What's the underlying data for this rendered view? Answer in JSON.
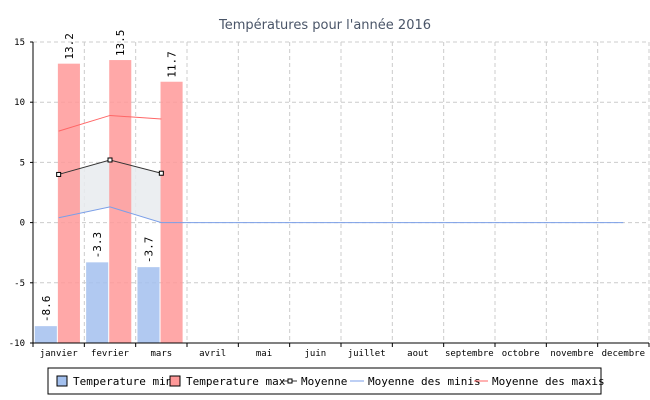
{
  "chart_data": {
    "type": "bar",
    "title": "Températures pour l'année 2016",
    "categories": [
      "janvier",
      "fevrier",
      "mars",
      "avril",
      "mai",
      "juin",
      "juillet",
      "aout",
      "septembre",
      "octobre",
      "novembre",
      "decembre"
    ],
    "ylim": [
      -10,
      15
    ],
    "yticks": [
      -10,
      -5,
      0,
      5,
      10,
      15
    ],
    "grid": true,
    "legend_position": "bottom",
    "series": [
      {
        "name": "Temperature min",
        "kind": "bar",
        "color": "#a3c0ee",
        "values": [
          -8.6,
          -3.3,
          -3.7,
          null,
          null,
          null,
          null,
          null,
          null,
          null,
          null,
          null
        ],
        "labels": [
          "-8.6",
          "-3.3",
          "-3.7"
        ]
      },
      {
        "name": "Temperature max",
        "kind": "bar",
        "color": "#ff9999",
        "values": [
          13.2,
          13.5,
          11.7,
          null,
          null,
          null,
          null,
          null,
          null,
          null,
          null,
          null
        ],
        "labels": [
          "13.2",
          "13.5",
          "11.7"
        ]
      },
      {
        "name": "Moyenne",
        "kind": "line-marker",
        "color": "#333333",
        "values": [
          4.0,
          5.2,
          4.1,
          null,
          null,
          null,
          null,
          null,
          null,
          null,
          null,
          null
        ]
      },
      {
        "name": "Moyenne des minis",
        "kind": "line",
        "color": "#7b9fe8",
        "values": [
          0.4,
          1.3,
          0.0,
          0,
          0,
          0,
          0,
          0,
          0,
          0,
          0,
          0
        ]
      },
      {
        "name": "Moyenne des maxis",
        "kind": "line",
        "color": "#ff6666",
        "values": [
          7.6,
          8.9,
          8.6,
          null,
          null,
          null,
          null,
          null,
          null,
          null,
          null,
          null
        ]
      }
    ]
  }
}
